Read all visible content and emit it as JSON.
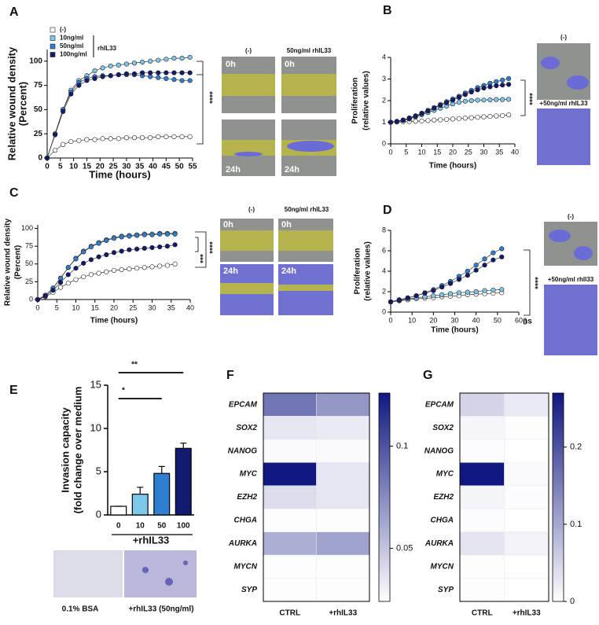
{
  "panel_labels": [
    "A",
    "B",
    "C",
    "D",
    "E",
    "F",
    "G"
  ],
  "image_labels": [
    "(-)",
    "50ng/ml rhIL33",
    "0h",
    "0h",
    "24h",
    "24h",
    "(-)",
    "+50ng/ml rhIL33",
    "(-)",
    "50ng/ml rhIL33",
    "0h",
    "0h",
    "24h",
    "24h",
    "(-)",
    "+50ng/ml rhll33",
    "0.1% BSA",
    "+rhIL33 (50ng/ml)"
  ],
  "chart_data": [
    {
      "type": "line",
      "xlabel": "Time (hours)",
      "ylabel": [
        "Relative wound  density",
        "(Percent)"
      ],
      "legend_group_label": "rhIL33",
      "annotations": [
        "****"
      ],
      "x": [
        0,
        3,
        6,
        9,
        12,
        15,
        18,
        21,
        24,
        27,
        30,
        33,
        36,
        39,
        42,
        45,
        48,
        51,
        54
      ],
      "xlim": [
        0,
        55
      ],
      "xticks": [
        0,
        5,
        10,
        15,
        20,
        25,
        30,
        35,
        40,
        45,
        50,
        55
      ],
      "ylim": [
        0,
        112
      ],
      "yticks": [
        0,
        25,
        50,
        75,
        100
      ],
      "series": [
        {
          "name": "(-)",
          "color": "#ffffff",
          "values": [
            0,
            8,
            14,
            17,
            18,
            19,
            19,
            20,
            20,
            20,
            21,
            21,
            21,
            21,
            22,
            22,
            22,
            22,
            22
          ]
        },
        {
          "name": "10ng/ml",
          "color": "#7ec8ec",
          "values": [
            0,
            25,
            50,
            70,
            80,
            85,
            90,
            93,
            95,
            96,
            97,
            98,
            99,
            100,
            101,
            102,
            103,
            103,
            104
          ]
        },
        {
          "name": "50ng/ml",
          "color": "#2f7fd0",
          "values": [
            0,
            25,
            50,
            68,
            78,
            82,
            84,
            85,
            85,
            86,
            86,
            86,
            85,
            84,
            83,
            82,
            81,
            80,
            80
          ]
        },
        {
          "name": "100ng/ml",
          "color": "#111a6e",
          "values": [
            0,
            24,
            48,
            66,
            75,
            80,
            82,
            84,
            85,
            86,
            87,
            87,
            88,
            88,
            88,
            88,
            88,
            88,
            88
          ]
        }
      ]
    },
    {
      "type": "line",
      "xlabel": "Time (hours)",
      "ylabel": [
        "Proliferation",
        "(relative values)"
      ],
      "annotations": [
        "****"
      ],
      "x": [
        0,
        2,
        4,
        6,
        8,
        10,
        12,
        14,
        16,
        18,
        20,
        22,
        24,
        26,
        28,
        30,
        32,
        34,
        36,
        38
      ],
      "xlim": [
        0,
        40
      ],
      "xticks": [
        0,
        5,
        10,
        15,
        20,
        25,
        30,
        35,
        40
      ],
      "ylim": [
        0,
        4
      ],
      "yticks": [
        0,
        1,
        2,
        3,
        4
      ],
      "series": [
        {
          "color": "#ffffff",
          "values": [
            1.0,
            1.01,
            1.02,
            1.03,
            1.05,
            1.06,
            1.08,
            1.1,
            1.11,
            1.13,
            1.15,
            1.17,
            1.19,
            1.21,
            1.23,
            1.25,
            1.27,
            1.29,
            1.31,
            1.34
          ]
        },
        {
          "color": "#7ec8ec",
          "values": [
            1.0,
            1.03,
            1.08,
            1.15,
            1.25,
            1.35,
            1.45,
            1.55,
            1.65,
            1.75,
            1.85,
            1.92,
            1.97,
            2.0,
            2.02,
            2.03,
            2.04,
            2.05,
            2.05,
            2.06
          ]
        },
        {
          "color": "#2f7fd0",
          "values": [
            1.0,
            1.04,
            1.1,
            1.2,
            1.3,
            1.42,
            1.55,
            1.68,
            1.82,
            1.95,
            2.08,
            2.2,
            2.35,
            2.48,
            2.6,
            2.7,
            2.8,
            2.88,
            2.95,
            3.02
          ]
        },
        {
          "color": "#111a6e",
          "values": [
            1.0,
            1.04,
            1.1,
            1.18,
            1.28,
            1.4,
            1.52,
            1.65,
            1.78,
            1.9,
            2.02,
            2.15,
            2.28,
            2.4,
            2.5,
            2.58,
            2.64,
            2.69,
            2.72,
            2.75
          ]
        }
      ]
    },
    {
      "type": "line",
      "xlabel": "Time (hours)",
      "ylabel": [
        "Relative wound  density",
        "(Percent)"
      ],
      "annotations": [
        "***",
        "****"
      ],
      "x": [
        0,
        2,
        4,
        6,
        8,
        10,
        12,
        14,
        16,
        18,
        20,
        22,
        24,
        26,
        28,
        30,
        32,
        34,
        36
      ],
      "xlim": [
        0,
        40
      ],
      "xticks": [
        0,
        5,
        10,
        15,
        20,
        25,
        30,
        35,
        40
      ],
      "ylim": [
        0,
        105
      ],
      "yticks": [
        0,
        25,
        50,
        75,
        100
      ],
      "series": [
        {
          "color": "#ffffff",
          "values": [
            0,
            4,
            10,
            17,
            23,
            28,
            32,
            35,
            37,
            39,
            41,
            42,
            43,
            44,
            45,
            46,
            47,
            48,
            50
          ]
        },
        {
          "color": "#7ec8ec",
          "values": [
            0,
            6,
            16,
            30,
            45,
            58,
            68,
            75,
            80,
            84,
            87,
            89,
            90,
            91,
            92,
            92,
            93,
            93,
            93
          ]
        },
        {
          "color": "#2f7fd0",
          "values": [
            0,
            6,
            16,
            30,
            45,
            57,
            67,
            74,
            79,
            83,
            86,
            88,
            89,
            90,
            91,
            91,
            92,
            92,
            92
          ]
        },
        {
          "color": "#111a6e",
          "values": [
            0,
            5,
            13,
            24,
            35,
            44,
            51,
            56,
            60,
            63,
            66,
            68,
            70,
            71,
            72,
            73,
            74,
            75,
            77
          ]
        }
      ]
    },
    {
      "type": "line",
      "xlabel": "Time (hours)",
      "ylabel": [
        "Proliferation",
        "(relative values)"
      ],
      "annotations": [
        "****",
        "ns"
      ],
      "x": [
        0,
        4,
        8,
        12,
        16,
        20,
        24,
        28,
        32,
        36,
        40,
        44,
        48,
        52
      ],
      "xlim": [
        0,
        60
      ],
      "xticks": [
        0,
        10,
        20,
        30,
        40,
        50,
        60
      ],
      "ylim": [
        0,
        8
      ],
      "yticks": [
        0,
        2,
        4,
        6,
        8
      ],
      "series": [
        {
          "color": "#ffffff",
          "values": [
            1.0,
            1.1,
            1.2,
            1.3,
            1.35,
            1.4,
            1.5,
            1.55,
            1.6,
            1.7,
            1.75,
            1.8,
            1.85,
            1.9
          ]
        },
        {
          "color": "#7ec8ec",
          "values": [
            1.0,
            1.15,
            1.3,
            1.4,
            1.5,
            1.6,
            1.7,
            1.8,
            1.9,
            1.95,
            2.0,
            2.1,
            2.15,
            2.2
          ]
        },
        {
          "color": "#2f7fd0",
          "values": [
            1.0,
            1.2,
            1.4,
            1.6,
            1.9,
            2.2,
            2.6,
            3.0,
            3.5,
            4.0,
            4.6,
            5.2,
            5.8,
            6.2
          ]
        },
        {
          "color": "#111a6e",
          "values": [
            1.0,
            1.2,
            1.4,
            1.6,
            1.85,
            2.1,
            2.45,
            2.8,
            3.2,
            3.6,
            4.1,
            4.6,
            5.1,
            5.4
          ]
        }
      ]
    },
    {
      "type": "bar",
      "xlabel": "+rhIL33",
      "ylabel": [
        "Invasion capacity",
        "(fold change over medium"
      ],
      "annotations": [
        "**",
        "*"
      ],
      "categories": [
        "0",
        "10",
        "50",
        "100"
      ],
      "values": [
        1,
        2.4,
        4.8,
        7.7
      ],
      "errors": [
        0,
        0.8,
        0.8,
        0.6
      ],
      "colors": [
        "#ffffff",
        "#7ec8ec",
        "#2f7fd0",
        "#111a6e"
      ],
      "ylim": [
        0,
        15
      ],
      "yticks": [
        0,
        5,
        10,
        15
      ]
    },
    {
      "type": "heatmap",
      "x_categories": [
        "CTRL",
        "+rhIL33"
      ],
      "y_categories": [
        "EPCAM",
        "SOX2",
        "NANOG",
        "MYC",
        "EZH2",
        "CHGA",
        "AURKA",
        "MYCN",
        "SYP"
      ],
      "values": [
        [
          0.085,
          0.07
        ],
        [
          0.035,
          0.033
        ],
        [
          0.026,
          0.026
        ],
        [
          0.126,
          0.035
        ],
        [
          0.04,
          0.035
        ],
        [
          0.025,
          0.025
        ],
        [
          0.06,
          0.065
        ],
        [
          0.025,
          0.025
        ],
        [
          0.025,
          0.025
        ]
      ],
      "zlim": [
        0.024,
        0.126
      ],
      "zticks": [
        0.05,
        0.1
      ],
      "colormap": [
        "#ffffff",
        "#101880"
      ]
    },
    {
      "type": "heatmap",
      "x_categories": [
        "CTRL",
        "+rhIL33"
      ],
      "y_categories": [
        "EPCAM",
        "SOX2",
        "NANOG",
        "MYC",
        "EZH2",
        "CHGA",
        "AURKA",
        "MYCN",
        "SYP"
      ],
      "values": [
        [
          0.05,
          0.025
        ],
        [
          0.01,
          0.002
        ],
        [
          0.003,
          0.001
        ],
        [
          0.27,
          0.005
        ],
        [
          0.012,
          0.003
        ],
        [
          0.003,
          0.001
        ],
        [
          0.03,
          0.015
        ],
        [
          0.002,
          0.001
        ],
        [
          0.002,
          0.001
        ]
      ],
      "zlim": [
        0,
        0.27
      ],
      "zticks": [
        0,
        0.1,
        0.2
      ],
      "colormap": [
        "#ffffff",
        "#101880"
      ]
    }
  ]
}
